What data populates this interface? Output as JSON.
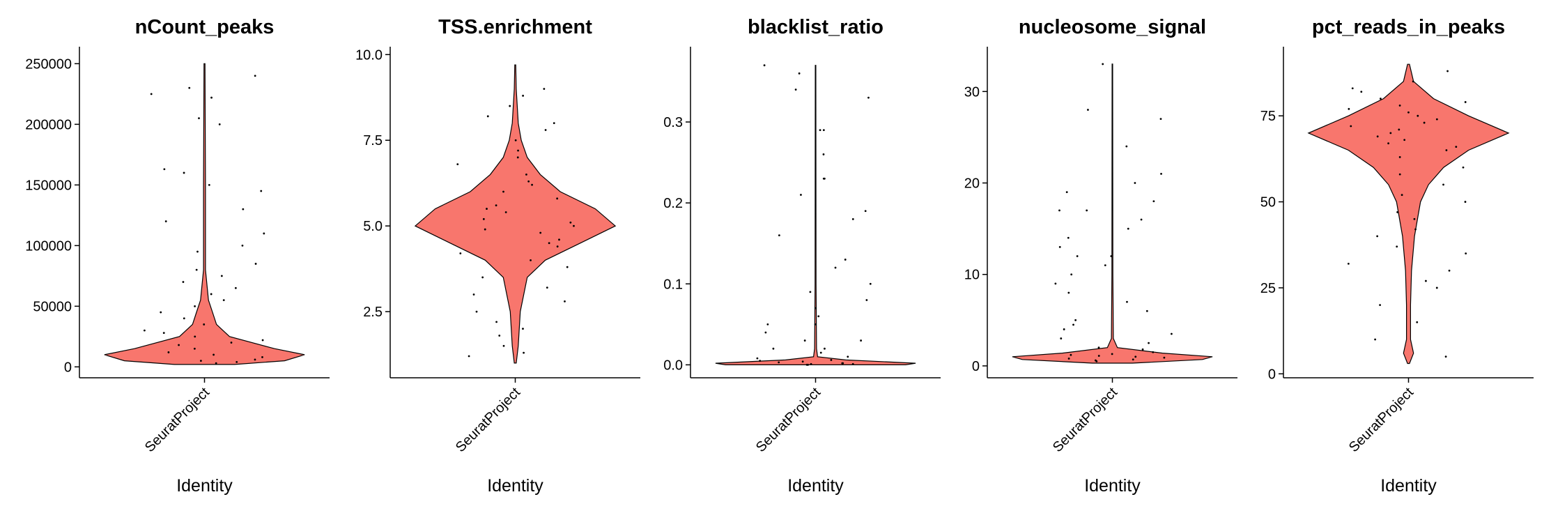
{
  "chart_data": [
    {
      "type": "violin",
      "title": "nCount_peaks",
      "xlabel": "Identity",
      "categories": [
        "SeuratProject"
      ],
      "color": "#F8766D",
      "ylim": [
        -9000,
        264000
      ],
      "yticks": [
        0,
        50000,
        100000,
        150000,
        200000,
        250000
      ],
      "violin": {
        "y": [
          2000,
          5000,
          10000,
          15000,
          25000,
          35000,
          45000,
          55000,
          80000,
          150000,
          250000
        ],
        "width": [
          0.3,
          0.8,
          1,
          0.7,
          0.25,
          0.12,
          0.08,
          0.04,
          0.01,
          0.01,
          0.005
        ]
      },
      "points": [
        240000,
        225000,
        222000,
        230000,
        205000,
        200000,
        163000,
        160000,
        150000,
        145000,
        130000,
        120000,
        110000,
        100000,
        95000,
        85000,
        80000,
        75000,
        70000,
        65000,
        60000,
        55000,
        50000,
        45000,
        40000,
        35000,
        30000,
        28000,
        25000,
        22000,
        20000,
        18000,
        15000,
        12000,
        10000,
        8000,
        6000,
        5000,
        4000,
        3000
      ]
    },
    {
      "type": "violin",
      "title": "TSS.enrichment",
      "xlabel": "Identity",
      "categories": [
        "SeuratProject"
      ],
      "color": "#F8766D",
      "ylim": [
        0.57,
        10.23
      ],
      "yticks": [
        2.5,
        5.0,
        7.5,
        10.0
      ],
      "ytick_labels": [
        "2.5",
        "5.0",
        "7.5",
        "10.0"
      ],
      "violin": {
        "y": [
          1,
          1.5,
          2.5,
          3.5,
          4,
          4.5,
          5,
          5.5,
          6,
          6.5,
          7,
          7.5,
          8,
          9,
          9.7
        ],
        "width": [
          0.01,
          0.03,
          0.05,
          0.12,
          0.3,
          0.65,
          1,
          0.8,
          0.45,
          0.25,
          0.12,
          0.06,
          0.03,
          0.01,
          0.005
        ]
      },
      "points": [
        9,
        8.8,
        8.5,
        8.2,
        8,
        7.8,
        7.5,
        7.2,
        7,
        6.8,
        6.5,
        6.3,
        6,
        5.8,
        5.6,
        5.4,
        5.2,
        5,
        4.8,
        4.6,
        4.4,
        4.2,
        4,
        3.8,
        3.5,
        3.2,
        3,
        2.8,
        2.5,
        2.2,
        2,
        1.8,
        1.5,
        1.3,
        1.2,
        6.2,
        5.1,
        4.9,
        5.5,
        4.5
      ]
    },
    {
      "type": "violin",
      "title": "blacklist_ratio",
      "xlabel": "Identity",
      "categories": [
        "SeuratProject"
      ],
      "color": "#F8766D",
      "ylim": [
        -0.016,
        0.393
      ],
      "yticks": [
        0.0,
        0.1,
        0.2,
        0.3
      ],
      "ytick_labels": [
        "0.0",
        "0.1",
        "0.2",
        "0.3"
      ],
      "violin": {
        "y": [
          0,
          0.002,
          0.006,
          0.01,
          0.02,
          0.1,
          0.37
        ],
        "width": [
          0.9,
          1,
          0.3,
          0.02,
          0.01,
          0.005,
          0.003
        ]
      },
      "points": [
        0.37,
        0.36,
        0.34,
        0.33,
        0.29,
        0.29,
        0.26,
        0.23,
        0.23,
        0.21,
        0.19,
        0.18,
        0.16,
        0.13,
        0.12,
        0.1,
        0.09,
        0.08,
        0.07,
        0.06,
        0.05,
        0.05,
        0.04,
        0.03,
        0.03,
        0.02,
        0.02,
        0.015,
        0.01,
        0.008,
        0.006,
        0.005,
        0.004,
        0.003,
        0.002,
        0.002,
        0.001,
        0.001,
        0,
        0
      ]
    },
    {
      "type": "violin",
      "title": "nucleosome_signal",
      "xlabel": "Identity",
      "categories": [
        "SeuratProject"
      ],
      "color": "#F8766D",
      "ylim": [
        -1.3,
        34.9
      ],
      "yticks": [
        0,
        10,
        20,
        30
      ],
      "violin": {
        "y": [
          0.3,
          0.7,
          1,
          1.4,
          2,
          3,
          10,
          33
        ],
        "width": [
          0.2,
          0.9,
          1,
          0.5,
          0.05,
          0.01,
          0.005,
          0.003
        ]
      },
      "points": [
        33,
        28,
        27,
        24,
        21,
        20,
        19,
        18,
        17,
        17,
        16,
        15,
        14,
        13,
        12,
        12,
        11,
        10,
        9,
        8,
        7,
        6,
        5,
        4.5,
        4,
        3.5,
        3,
        2.5,
        2,
        1.8,
        1.5,
        1.3,
        1.2,
        1.1,
        1,
        0.9,
        0.8,
        0.7,
        0.6,
        0.5
      ]
    },
    {
      "type": "violin",
      "title": "pct_reads_in_peaks",
      "xlabel": "Identity",
      "categories": [
        "SeuratProject"
      ],
      "color": "#F8766D",
      "ylim": [
        -1.15,
        95.1
      ],
      "yticks": [
        0,
        25,
        50,
        75
      ],
      "violin": {
        "y": [
          3,
          6,
          10,
          20,
          30,
          40,
          50,
          55,
          60,
          65,
          70,
          75,
          80,
          85,
          90
        ],
        "width": [
          0.01,
          0.05,
          0.02,
          0.02,
          0.03,
          0.06,
          0.12,
          0.2,
          0.35,
          0.6,
          1,
          0.6,
          0.25,
          0.05,
          0.01
        ]
      },
      "points": [
        88,
        85,
        83,
        82,
        80,
        79,
        78,
        77,
        76,
        75,
        74,
        73,
        72,
        71,
        70,
        69,
        68,
        67,
        66,
        65,
        63,
        60,
        58,
        55,
        52,
        50,
        47,
        45,
        42,
        40,
        37,
        35,
        32,
        30,
        27,
        25,
        20,
        15,
        10,
        5
      ]
    }
  ]
}
